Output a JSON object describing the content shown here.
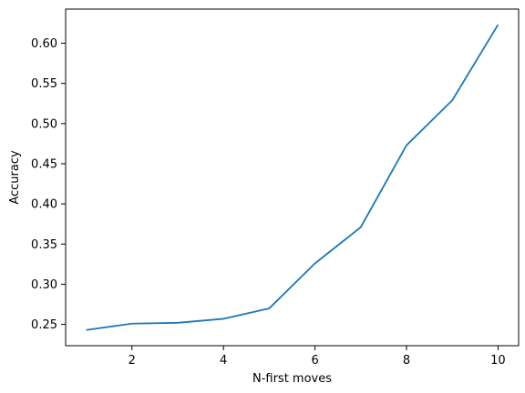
{
  "chart_data": {
    "type": "line",
    "title": "",
    "xlabel": "N-first moves",
    "ylabel": "Accuracy",
    "xlim": [
      0.55,
      10.45
    ],
    "ylim": [
      0.2235,
      0.6425
    ],
    "xticks": [
      2,
      4,
      6,
      8,
      10
    ],
    "yticks": [
      0.25,
      0.3,
      0.35,
      0.4,
      0.45,
      0.5,
      0.55,
      0.6
    ],
    "xtick_labels": [
      "2",
      "4",
      "6",
      "8",
      "10"
    ],
    "ytick_labels": [
      "0.25",
      "0.30",
      "0.35",
      "0.40",
      "0.45",
      "0.50",
      "0.55",
      "0.60"
    ],
    "grid": false,
    "series": [
      {
        "color": "#1f77b4",
        "x": [
          1,
          2,
          3,
          4,
          5,
          6,
          7,
          8,
          9,
          10
        ],
        "y": [
          0.243,
          0.251,
          0.252,
          0.257,
          0.27,
          0.326,
          0.371,
          0.473,
          0.529,
          0.623
        ]
      }
    ]
  }
}
